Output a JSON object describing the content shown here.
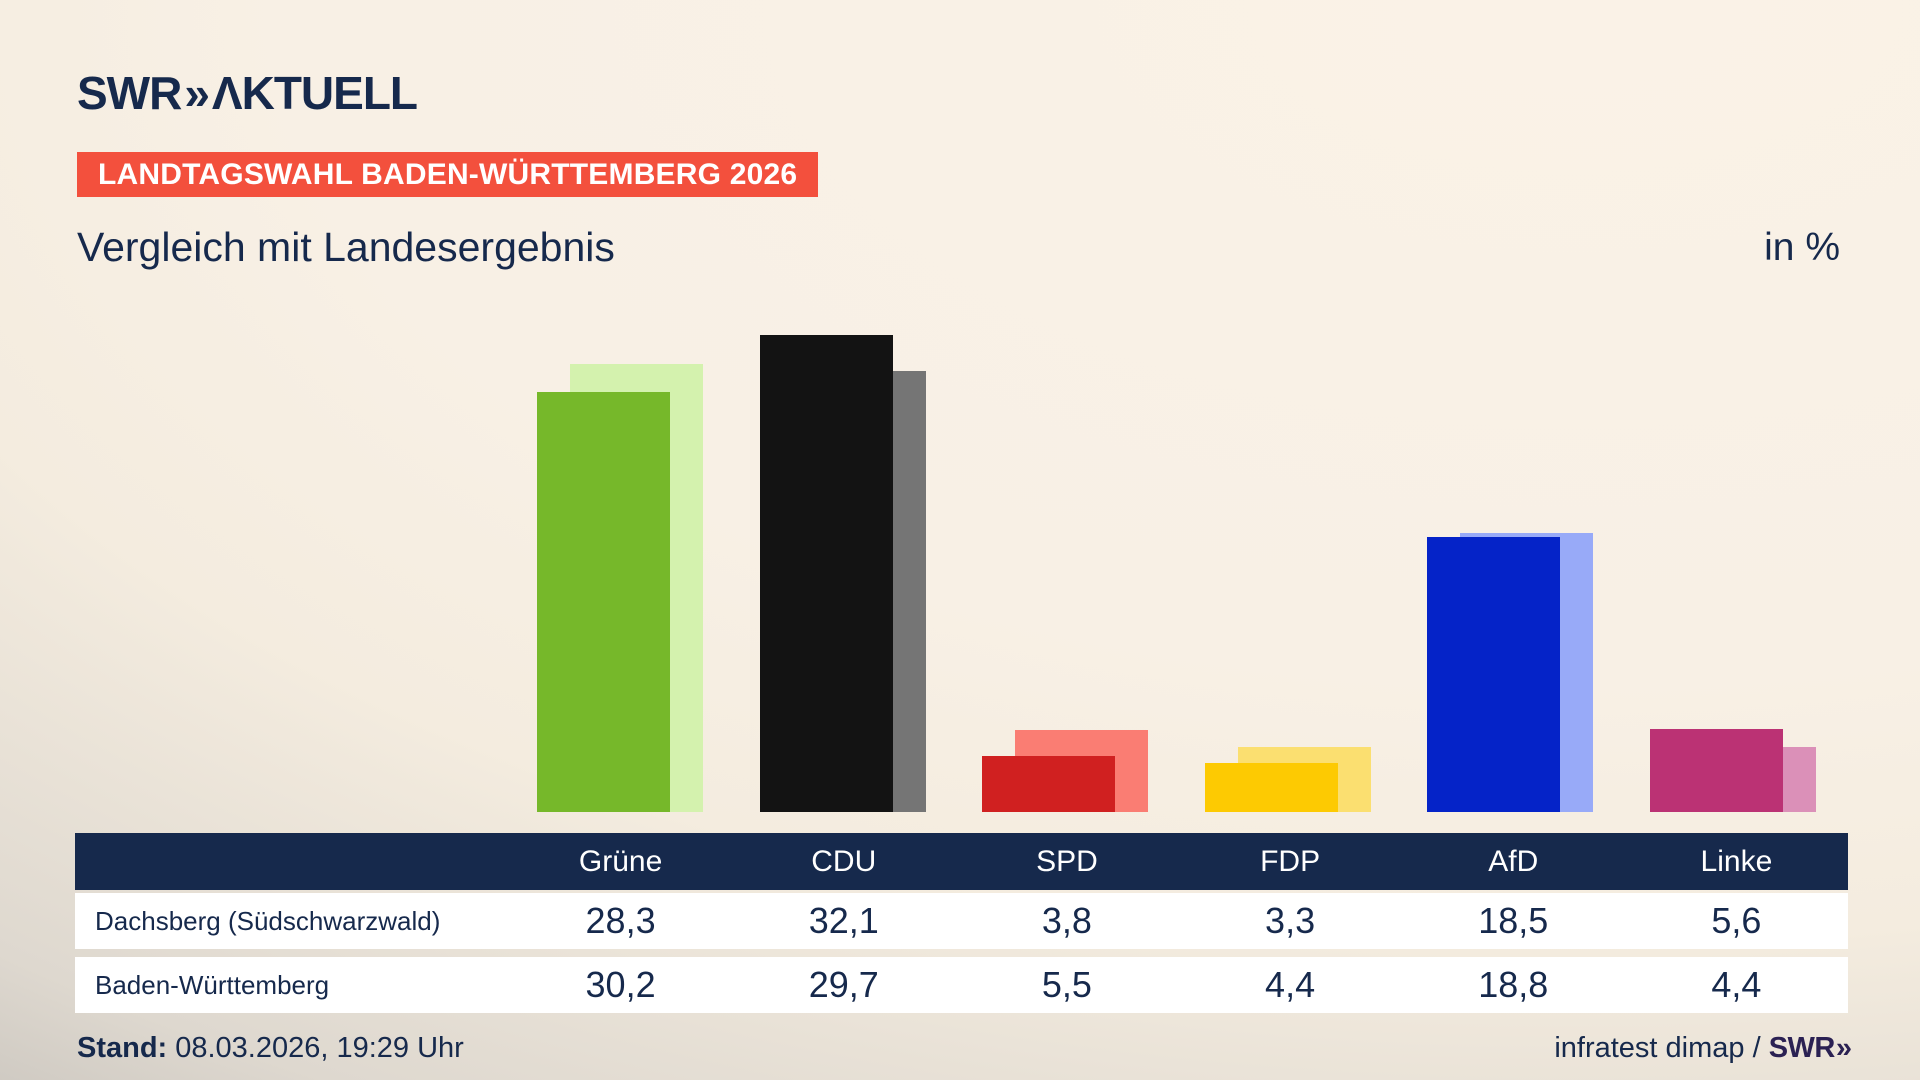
{
  "brand": {
    "logo_swr": "SWR",
    "logo_chevrons": "»",
    "logo_suffix": "ΛKTUELL"
  },
  "badge": {
    "text": "LANDTAGSWAHL BADEN-WÜRTTEMBERG 2026",
    "bg": "#f3503d"
  },
  "title": "Vergleich mit Landesergebnis",
  "unit_label": "in %",
  "chart_data": {
    "type": "bar",
    "title": "Vergleich mit Landesergebnis",
    "unit": "%",
    "categories": [
      "Grüne",
      "CDU",
      "SPD",
      "FDP",
      "AfD",
      "Linke"
    ],
    "series": [
      {
        "name": "Dachsberg (Südschwarzwald)",
        "role": "foreground",
        "values": [
          28.3,
          32.1,
          3.8,
          3.3,
          18.5,
          5.6
        ]
      },
      {
        "name": "Baden-Württemberg",
        "role": "background",
        "values": [
          30.2,
          29.7,
          5.5,
          4.4,
          18.8,
          4.4
        ]
      }
    ],
    "party_colors": {
      "front": [
        "#76b82a",
        "#131313",
        "#d02020",
        "#fdca02",
        "#0523c8",
        "#bb3274"
      ],
      "back": [
        "#d4f2ae",
        "#757575",
        "#fa7d73",
        "#fbdf70",
        "#98aaf8",
        "#db90b8"
      ]
    },
    "ylim": [
      0,
      34
    ],
    "legend_position": "table-rows",
    "grid": false
  },
  "footer": {
    "stand_label": "Stand:",
    "stand_value": "08.03.2026, 19:29 Uhr",
    "source_text": "infratest dimap / ",
    "source_logo_swr": "SWR",
    "source_logo_chevrons": "»"
  }
}
